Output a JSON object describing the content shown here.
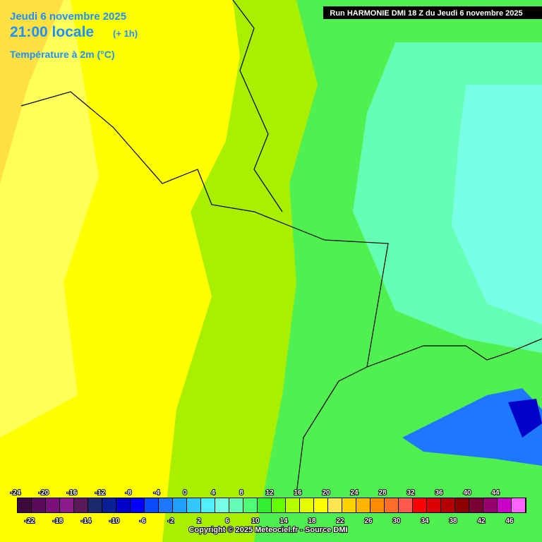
{
  "header": {
    "date": "Jeudi 6 novembre 2025",
    "time": "21:00 locale",
    "offset": "(+ 1h)",
    "variable": "Température à 2m (°C)"
  },
  "run": "Run HARMONIE DMI 18 Z du Jeudi 6 novembre 2025",
  "legend": {
    "labels": [
      -24,
      -22,
      -20,
      -18,
      -16,
      -14,
      -12,
      -10,
      -8,
      -6,
      -4,
      -2,
      0,
      2,
      4,
      6,
      8,
      10,
      12,
      14,
      16,
      18,
      20,
      22,
      24,
      26,
      28,
      30,
      32,
      34,
      36,
      38,
      40,
      42,
      44,
      46
    ],
    "colors": [
      "#3c0a3c",
      "#5a0a5a",
      "#7a107a",
      "#8c1a8c",
      "#5a1a5a",
      "#1e2a6e",
      "#0a1e96",
      "#0000c8",
      "#0000ff",
      "#0a4bff",
      "#1e78ff",
      "#1ea0ff",
      "#32c8ff",
      "#50f0ff",
      "#78ffe6",
      "#64ffb4",
      "#50ff78",
      "#32f032",
      "#64ff00",
      "#b4ff00",
      "#e6ff00",
      "#ffff00",
      "#ffe650",
      "#ffd200",
      "#ffb400",
      "#ff8c00",
      "#ff6e28",
      "#ff5a50",
      "#ff0000",
      "#dc0000",
      "#b40000",
      "#8c0000",
      "#780032",
      "#96006e",
      "#c800c8",
      "#ff64ff"
    ]
  },
  "copyright": "Copyright © 2025 Meteociel.fr - Source DMI"
}
